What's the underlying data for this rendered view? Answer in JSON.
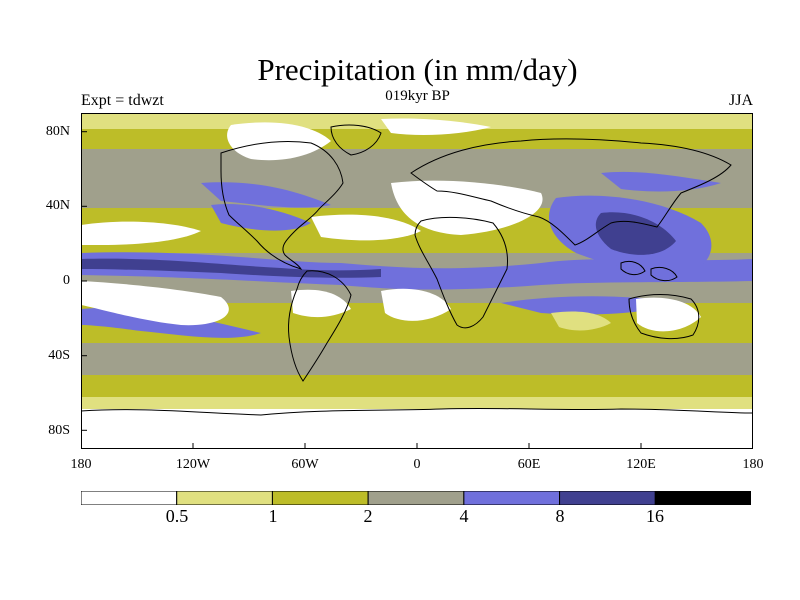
{
  "figure": {
    "title": "Precipitation (in mm/day)",
    "experiment": "Expt = tdwzt",
    "time": "019kyr BP",
    "season": "JJA"
  },
  "axes": {
    "y_ticks": [
      "80N",
      "40N",
      "0",
      "40S",
      "80S"
    ],
    "x_ticks": [
      "180",
      "120W",
      "60W",
      "0",
      "60E",
      "120E",
      "180"
    ],
    "lon_range": [
      -180,
      180
    ],
    "lat_range": [
      -90,
      90
    ]
  },
  "colorbar": {
    "levels": [
      "0.5",
      "1",
      "2",
      "4",
      "8",
      "16"
    ],
    "colors": [
      "#ffffff",
      "#e0e080",
      "#bdbd28",
      "#a0a08c",
      "#7070dc",
      "#404090",
      "#000000"
    ]
  },
  "map": {
    "colors": {
      "dry": "#ffffff",
      "very_low": "#e0e080",
      "low": "#bdbd28",
      "medium": "#a0a08c",
      "high": "#7070dc",
      "very_high": "#404090",
      "coast": "#000000"
    }
  }
}
